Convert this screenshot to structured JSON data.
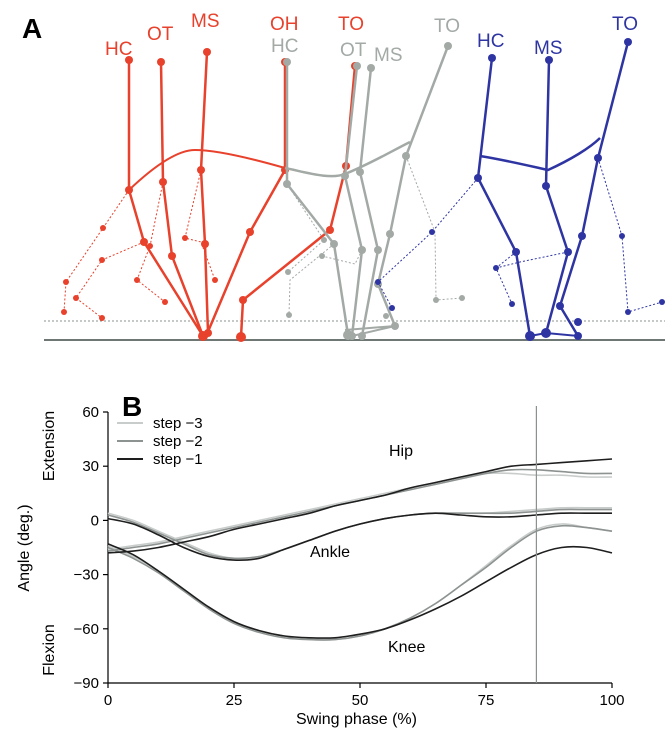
{
  "panels": {
    "a_letter": "A",
    "b_letter": "B"
  },
  "colors": {
    "red": "#e8412c",
    "gray": "#a3aaa6",
    "blue": "#2e35a3",
    "ground": "#6e7774"
  },
  "stick_figure": {
    "red_labels": [
      "HC",
      "OT",
      "MS",
      "OH",
      "TO"
    ],
    "gray_labels": [
      "HC",
      "OT",
      "MS",
      "TO"
    ],
    "blue_labels": [
      "HC",
      "MS",
      "TO"
    ]
  },
  "chart_data": {
    "type": "line",
    "title": "",
    "xlabel": "Swing phase (%)",
    "ylabel": "Angle (deg.)",
    "ylabel_top": "Extension",
    "ylabel_bottom": "Flexion",
    "xlim": [
      0,
      100
    ],
    "ylim": [
      -90,
      60
    ],
    "xticks": [
      0,
      25,
      50,
      75,
      100
    ],
    "yticks": [
      60,
      30,
      0,
      -30,
      -60,
      -90
    ],
    "ytick_labels": [
      "60",
      "30",
      "0",
      "−30",
      "−60",
      "−90"
    ],
    "vline_x": 85,
    "joint_labels": {
      "hip": "Hip",
      "ankle": "Ankle",
      "knee": "Knee"
    },
    "legend": [
      "step −3",
      "step −2",
      "step −1"
    ],
    "series_colors": [
      "#c8cccb",
      "#8d9390",
      "#1e1e1e"
    ],
    "x": [
      0,
      5,
      10,
      15,
      20,
      25,
      30,
      35,
      40,
      45,
      50,
      55,
      60,
      65,
      70,
      75,
      80,
      85,
      90,
      95,
      100
    ],
    "series": [
      {
        "name": "step −3",
        "joint": "Hip",
        "values": [
          -16,
          -14,
          -12,
          -9,
          -6,
          -3,
          0,
          3,
          6,
          9,
          12,
          15,
          18,
          21,
          24,
          26,
          26,
          25,
          25,
          24,
          24
        ]
      },
      {
        "name": "step −2",
        "joint": "Hip",
        "values": [
          -17,
          -15,
          -13,
          -10,
          -7,
          -4,
          -1,
          2,
          5,
          8,
          11,
          14,
          17,
          20,
          23,
          26,
          28,
          28,
          27,
          26,
          26
        ]
      },
      {
        "name": "step −1",
        "joint": "Hip",
        "values": [
          -18,
          -17,
          -15,
          -12,
          -9,
          -5,
          -2,
          1,
          4,
          8,
          11,
          14,
          18,
          21,
          24,
          27,
          30,
          31,
          32,
          33,
          34
        ]
      },
      {
        "name": "step −3",
        "joint": "Ankle",
        "values": [
          4,
          0,
          -6,
          -12,
          -18,
          -21,
          -20,
          -16,
          -11,
          -6,
          -2,
          1,
          3,
          4,
          4,
          4,
          5,
          6,
          7,
          7,
          7
        ]
      },
      {
        "name": "step −2",
        "joint": "Ankle",
        "values": [
          3,
          -1,
          -7,
          -13,
          -19,
          -21,
          -20,
          -16,
          -11,
          -6,
          -2,
          1,
          3,
          4,
          4,
          4,
          4,
          5,
          6,
          6,
          6
        ]
      },
      {
        "name": "step −1",
        "joint": "Ankle",
        "values": [
          1,
          -2,
          -8,
          -15,
          -20,
          -22,
          -21,
          -16,
          -11,
          -6,
          -2,
          1,
          3,
          4,
          3,
          2,
          2,
          3,
          4,
          4,
          4
        ]
      },
      {
        "name": "step −3",
        "joint": "Knee",
        "values": [
          -14,
          -20,
          -28,
          -38,
          -48,
          -56,
          -61,
          -64,
          -66,
          -66,
          -64,
          -60,
          -54,
          -46,
          -36,
          -25,
          -14,
          -5,
          -2,
          -4,
          -6
        ]
      },
      {
        "name": "step −2",
        "joint": "Knee",
        "values": [
          -15,
          -21,
          -29,
          -39,
          -49,
          -57,
          -62,
          -65,
          -66,
          -66,
          -64,
          -60,
          -54,
          -46,
          -36,
          -26,
          -15,
          -6,
          -3,
          -4,
          -6
        ]
      },
      {
        "name": "step −1",
        "joint": "Knee",
        "values": [
          -13,
          -19,
          -28,
          -38,
          -48,
          -56,
          -61,
          -64,
          -65,
          -65,
          -63,
          -60,
          -55,
          -49,
          -42,
          -34,
          -26,
          -19,
          -15,
          -15,
          -18
        ]
      }
    ]
  }
}
